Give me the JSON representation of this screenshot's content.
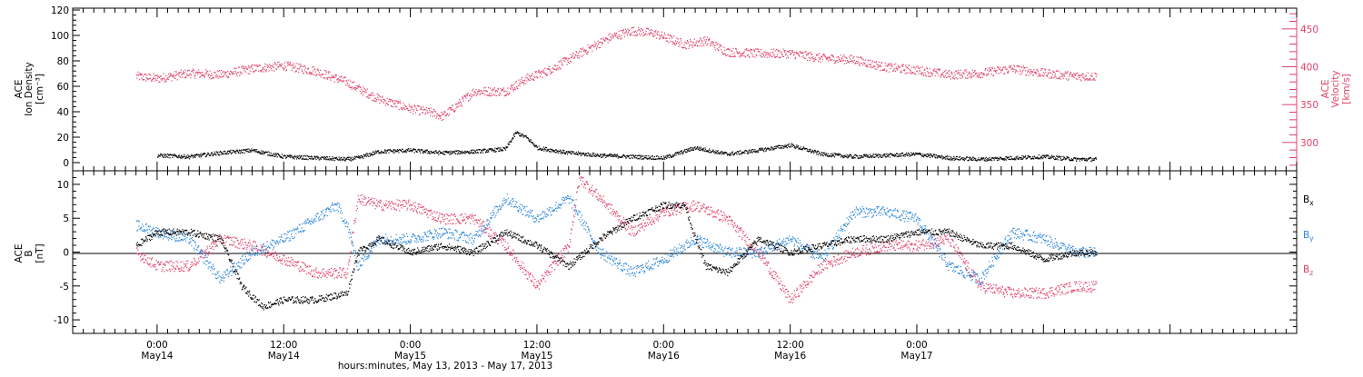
{
  "colors": {
    "black": "#000000",
    "pink": "#e0406a",
    "blue": "#2a86dc"
  },
  "chart_data": [
    {
      "type": "scatter",
      "panel": "top",
      "left_axis_label_lines": [
        "ACE",
        "Ion Density",
        "[cm⁻³]"
      ],
      "right_axis_label_lines": [
        "ACE",
        "Velocity",
        "[km/s]"
      ],
      "left_ylim": [
        -5,
        120
      ],
      "left_yticks": [
        "0",
        "20",
        "40",
        "60",
        "80",
        "100",
        "120"
      ],
      "right_ylim": [
        265,
        475
      ],
      "right_yticks": [
        "300",
        "350",
        "400",
        "450"
      ],
      "xlim_hours": [
        -8,
        108
      ],
      "series": [
        {
          "axis": "left",
          "color_key": "black",
          "x": [
            0,
            3,
            6,
            9,
            12,
            15,
            18,
            19,
            21,
            24,
            27,
            30,
            33,
            34,
            35,
            36,
            39,
            42,
            45,
            48,
            51,
            54,
            57,
            60,
            63,
            66,
            69,
            72,
            75,
            78,
            81,
            84,
            87,
            89
          ],
          "y": [
            6,
            5,
            8,
            10,
            5,
            4,
            3,
            4,
            9,
            10,
            8,
            9,
            11,
            24,
            20,
            12,
            8,
            6,
            5,
            4,
            12,
            7,
            10,
            14,
            7,
            5,
            6,
            7,
            4,
            3,
            4,
            5,
            3,
            3
          ]
        },
        {
          "axis": "right",
          "color_key": "pink",
          "x": [
            -2,
            0,
            3,
            6,
            9,
            12,
            15,
            18,
            19,
            21,
            24,
            26,
            27,
            28,
            30,
            33,
            35,
            37,
            40,
            43,
            45,
            47,
            50,
            52,
            54,
            57,
            60,
            63,
            66,
            69,
            72,
            75,
            78,
            81,
            84,
            87,
            89
          ],
          "y": [
            388,
            385,
            392,
            390,
            398,
            402,
            395,
            380,
            372,
            358,
            345,
            340,
            335,
            345,
            368,
            368,
            385,
            395,
            418,
            440,
            448,
            445,
            430,
            435,
            420,
            418,
            418,
            412,
            410,
            400,
            396,
            390,
            392,
            398,
            392,
            388,
            388
          ]
        }
      ]
    },
    {
      "type": "scatter",
      "panel": "bottom",
      "left_axis_label_lines": [
        "ACE",
        "B",
        "[nT]"
      ],
      "ylim": [
        -12,
        12
      ],
      "yticks": [
        "-10",
        "-5",
        "0",
        "5",
        "10"
      ],
      "xlim_hours": [
        -8,
        108
      ],
      "series": [
        {
          "name": "Bₓ",
          "legend_main": "B",
          "legend_sub": "x",
          "color_key": "black",
          "x": [
            -2,
            0,
            3,
            6,
            8,
            10,
            12,
            15,
            18,
            19,
            21,
            24,
            27,
            30,
            33,
            36,
            39,
            42,
            45,
            48,
            50,
            51,
            52,
            54,
            57,
            60,
            63,
            66,
            69,
            72,
            75,
            78,
            81,
            84,
            87,
            89
          ],
          "y": [
            1,
            3,
            3,
            2,
            -5,
            -8,
            -7,
            -7,
            -6,
            0,
            2,
            0,
            1,
            0,
            3,
            1,
            -2,
            2,
            5,
            7,
            7,
            2,
            -2,
            -3,
            2,
            0,
            1,
            2,
            2,
            3,
            3,
            1,
            1,
            -1,
            0,
            0
          ]
        },
        {
          "name": "Bᵧ",
          "legend_main": "B",
          "legend_sub": "y",
          "color_key": "blue",
          "x": [
            -2,
            0,
            3,
            6,
            9,
            12,
            15,
            17,
            18,
            19,
            21,
            24,
            27,
            30,
            33,
            36,
            39,
            42,
            45,
            48,
            51,
            54,
            57,
            60,
            63,
            66,
            69,
            72,
            75,
            78,
            81,
            84,
            87,
            89
          ],
          "y": [
            4,
            3,
            2,
            -4,
            0,
            2,
            5,
            7,
            4,
            -2,
            2,
            2,
            3,
            2,
            8,
            5,
            8,
            0,
            -3,
            -1,
            2,
            0,
            0,
            2,
            -1,
            6,
            6,
            5,
            -2,
            -4,
            3,
            2,
            0,
            0
          ],
          "spread": 3
        },
        {
          "name": "B_z",
          "legend_main": "B",
          "legend_sub": "z",
          "color_key": "pink",
          "x": [
            -2,
            0,
            3,
            6,
            9,
            12,
            15,
            18,
            19,
            21,
            24,
            27,
            30,
            33,
            36,
            39,
            40,
            42,
            45,
            48,
            51,
            54,
            57,
            60,
            63,
            66,
            69,
            72,
            75,
            78,
            81,
            84,
            87,
            89
          ],
          "y": [
            0,
            -2,
            -2,
            2,
            1,
            -1,
            -3,
            -3,
            8,
            7,
            7,
            5,
            5,
            1,
            -5,
            1,
            11,
            8,
            3,
            6,
            7,
            5,
            0,
            -7,
            -2,
            0,
            1,
            1,
            2,
            -5,
            -6,
            -6,
            -5,
            -5
          ],
          "spread": 3
        }
      ]
    }
  ],
  "x_ticks": [
    {
      "h": 0,
      "time": "0:00",
      "day": "May14"
    },
    {
      "h": 12,
      "time": "12:00",
      "day": "May14"
    },
    {
      "h": 24,
      "time": "0:00",
      "day": "May15"
    },
    {
      "h": 36,
      "time": "12:00",
      "day": "May15"
    },
    {
      "h": 48,
      "time": "0:00",
      "day": "May16"
    },
    {
      "h": 60,
      "time": "12:00",
      "day": "May16"
    },
    {
      "h": 72,
      "time": "0:00",
      "day": "May17"
    }
  ],
  "x_label": "hours:minutes, May 13, 2013 - May 17, 2013"
}
